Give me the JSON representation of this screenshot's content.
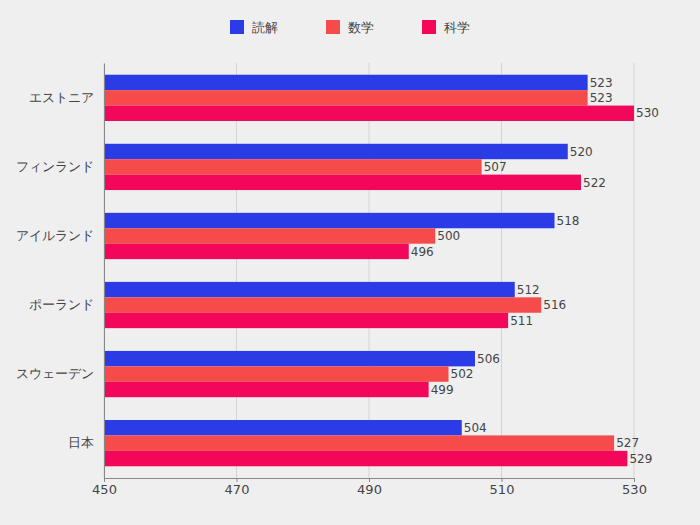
{
  "chart_data": {
    "type": "bar",
    "orientation": "horizontal",
    "categories": [
      "エストニア",
      "フィンランド",
      "アイルランド",
      "ポーランド",
      "スウェーデン",
      "日本"
    ],
    "series": [
      {
        "name": "読解",
        "color": "#2b3be6",
        "values": [
          523,
          520,
          518,
          512,
          506,
          504
        ]
      },
      {
        "name": "数学",
        "color": "#f54b4b",
        "values": [
          523,
          507,
          500,
          516,
          502,
          527
        ]
      },
      {
        "name": "科学",
        "color": "#f2075a",
        "values": [
          530,
          522,
          496,
          511,
          499,
          529
        ]
      }
    ],
    "xlim": [
      450,
      530
    ],
    "xticks": [
      450,
      470,
      490,
      510,
      530
    ],
    "grid": true,
    "legend": "top",
    "data_labels": true
  }
}
